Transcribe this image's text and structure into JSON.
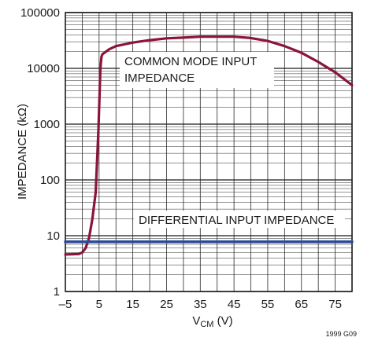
{
  "chart_data": {
    "type": "line",
    "xlabel": {
      "main": "V",
      "sub": "CM",
      "unit": " (V)"
    },
    "ylabel": "IMPEDANCE (kΩ)",
    "x_range": [
      -5,
      80
    ],
    "y_range": [
      1,
      100000
    ],
    "y_scale": "log",
    "grid": true,
    "x_ticks": [
      -5,
      5,
      15,
      25,
      35,
      45,
      55,
      65,
      75
    ],
    "x_tick_labels": [
      "–5",
      "5",
      "15",
      "25",
      "35",
      "45",
      "55",
      "65",
      "75"
    ],
    "y_ticks": [
      1,
      10,
      100,
      1000,
      10000,
      100000
    ],
    "y_tick_labels": [
      "1",
      "10",
      "100",
      "1000",
      "10000",
      "100000"
    ],
    "annotations": [
      {
        "lines": [
          "COMMON MODE INPUT",
          "IMPEDANCE"
        ]
      },
      {
        "lines": [
          "DIFFERENTIAL INPUT IMPEDANCE"
        ]
      }
    ],
    "series": [
      {
        "color": "#8b1538",
        "x": [
          -5,
          -1,
          0,
          1,
          2,
          3,
          4,
          4.8,
          5.4,
          5.7,
          6,
          8,
          10,
          15,
          20,
          25,
          30,
          35,
          40,
          45,
          50,
          55,
          60,
          65,
          70,
          75,
          80
        ],
        "y": [
          4.6,
          4.7,
          5,
          6,
          9,
          20,
          60,
          800,
          10000,
          16000,
          18000,
          22000,
          25000,
          29000,
          32000,
          34500,
          35500,
          37000,
          37000,
          37000,
          35000,
          31000,
          25000,
          19000,
          13000,
          8500,
          5000
        ]
      },
      {
        "color": "#2f4a9a",
        "x": [
          -5,
          80
        ],
        "y": [
          7.8,
          7.8
        ]
      }
    ]
  },
  "figure_id": "1999 G09"
}
